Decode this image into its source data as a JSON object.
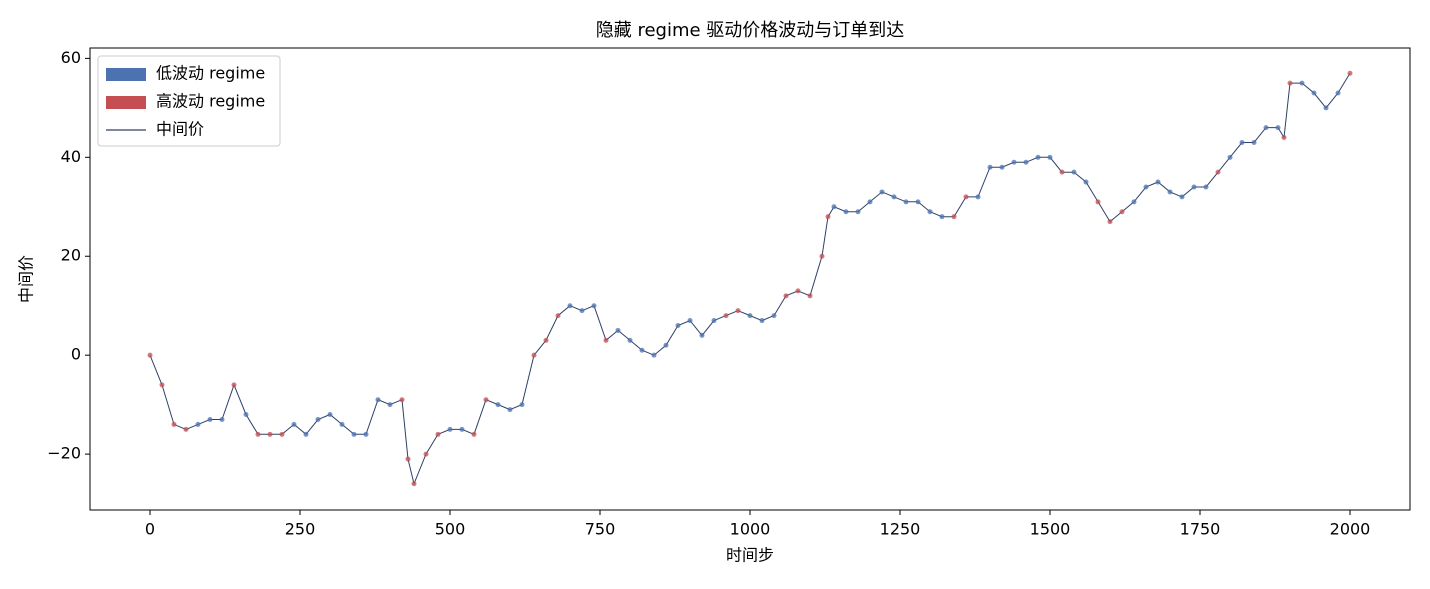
{
  "chart_data": {
    "type": "line",
    "title": "隐藏 regime 驱动价格波动与订单到达",
    "x_label": "时间步",
    "y_label": "中间价",
    "xlim": [
      -100,
      2100
    ],
    "ylim": [
      -31.3,
      62.1
    ],
    "xticks": [
      0,
      250,
      500,
      750,
      1000,
      1250,
      1500,
      1750,
      2000
    ],
    "yticks": [
      {
        "value": -20,
        "label": "−20"
      },
      0,
      20,
      40,
      60
    ],
    "legend": "upper left",
    "series": [
      {
        "name": "低波动 regime",
        "type": "scatter",
        "legend_marker": "patch",
        "color": "#4c72b0",
        "x": [
          80,
          100,
          120,
          160,
          240,
          260,
          280,
          300,
          320,
          340,
          360,
          380,
          400,
          500,
          520,
          580,
          600,
          620,
          700,
          720,
          740,
          780,
          800,
          820,
          840,
          860,
          880,
          900,
          920,
          940,
          1000,
          1020,
          1040,
          1140,
          1160,
          1180,
          1200,
          1220,
          1240,
          1260,
          1280,
          1300,
          1320,
          1380,
          1400,
          1420,
          1440,
          1460,
          1480,
          1500,
          1540,
          1560,
          1640,
          1660,
          1680,
          1700,
          1720,
          1740,
          1760,
          1800,
          1820,
          1840,
          1860,
          1880,
          1920,
          1940,
          1960,
          1980
        ],
        "values": [
          -14,
          -13,
          -13,
          -12,
          -14,
          -16,
          -13,
          -12,
          -14,
          -16,
          -16,
          -9,
          -10,
          -15,
          -15,
          -10,
          -11,
          -10,
          10,
          9,
          10,
          5,
          3,
          1,
          0,
          2,
          6,
          7,
          4,
          7,
          8,
          7,
          8,
          30,
          29,
          29,
          31,
          33,
          32,
          31,
          31,
          29,
          28,
          32,
          38,
          38,
          39,
          39,
          40,
          40,
          37,
          35,
          31,
          34,
          35,
          33,
          32,
          34,
          34,
          40,
          43,
          43,
          46,
          46,
          55,
          53,
          50,
          53
        ]
      },
      {
        "name": "高波动 regime",
        "type": "scatter",
        "legend_marker": "patch",
        "color": "#c44e52",
        "x": [
          0,
          20,
          40,
          60,
          140,
          180,
          200,
          220,
          420,
          430,
          440,
          460,
          480,
          540,
          560,
          640,
          660,
          680,
          760,
          960,
          980,
          1060,
          1080,
          1100,
          1120,
          1130,
          1340,
          1360,
          1520,
          1580,
          1600,
          1620,
          1780,
          1890,
          1900,
          2000
        ],
        "values": [
          0,
          -6,
          -14,
          -15,
          -6,
          -16,
          -16,
          -16,
          -9,
          -21,
          -26,
          -20,
          -16,
          -16,
          -9,
          0,
          3,
          8,
          3,
          8,
          9,
          12,
          13,
          12,
          20,
          28,
          28,
          32,
          37,
          31,
          27,
          29,
          37,
          44,
          55,
          57
        ]
      },
      {
        "name": "中间价",
        "type": "line",
        "legend_marker": "line",
        "color": "#2f4068",
        "x": [
          0,
          20,
          40,
          60,
          80,
          100,
          120,
          140,
          160,
          180,
          200,
          220,
          240,
          260,
          280,
          300,
          320,
          340,
          360,
          380,
          400,
          420,
          430,
          440,
          460,
          480,
          500,
          520,
          540,
          560,
          580,
          600,
          620,
          640,
          660,
          680,
          700,
          720,
          740,
          760,
          780,
          800,
          820,
          840,
          860,
          880,
          900,
          920,
          940,
          960,
          980,
          1000,
          1020,
          1040,
          1060,
          1080,
          1100,
          1120,
          1130,
          1140,
          1160,
          1180,
          1200,
          1220,
          1240,
          1260,
          1280,
          1300,
          1320,
          1340,
          1360,
          1380,
          1400,
          1420,
          1440,
          1460,
          1480,
          1500,
          1520,
          1540,
          1560,
          1580,
          1600,
          1620,
          1640,
          1660,
          1680,
          1700,
          1720,
          1740,
          1760,
          1780,
          1800,
          1820,
          1840,
          1860,
          1880,
          1890,
          1900,
          1920,
          1940,
          1960,
          1980,
          2000
        ],
        "values": [
          0,
          -6,
          -14,
          -15,
          -14,
          -13,
          -13,
          -6,
          -12,
          -16,
          -16,
          -16,
          -14,
          -16,
          -13,
          -12,
          -14,
          -16,
          -16,
          -9,
          -10,
          -9,
          -21,
          -26,
          -20,
          -16,
          -15,
          -15,
          -16,
          -9,
          -10,
          -11,
          -10,
          0,
          3,
          8,
          10,
          9,
          10,
          3,
          5,
          3,
          1,
          0,
          2,
          6,
          7,
          4,
          7,
          8,
          9,
          8,
          7,
          8,
          12,
          13,
          12,
          20,
          28,
          30,
          29,
          29,
          31,
          33,
          32,
          31,
          31,
          29,
          28,
          28,
          32,
          32,
          38,
          38,
          39,
          39,
          40,
          40,
          37,
          37,
          35,
          31,
          27,
          29,
          31,
          34,
          35,
          33,
          32,
          34,
          34,
          37,
          40,
          43,
          43,
          46,
          46,
          44,
          55,
          55,
          53,
          50,
          53,
          57
        ]
      }
    ]
  }
}
